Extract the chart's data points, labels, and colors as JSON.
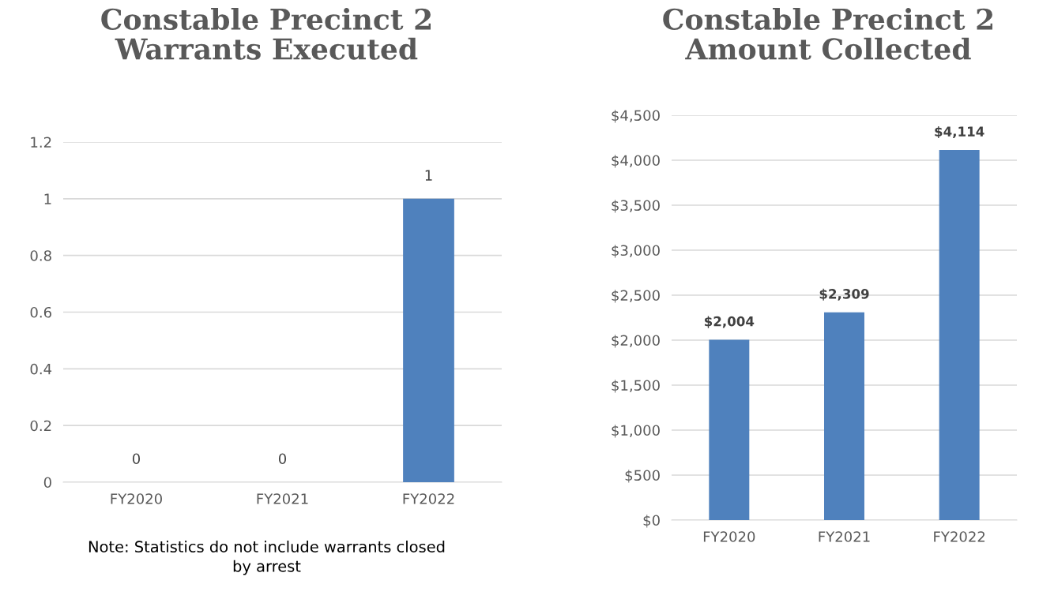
{
  "chart_data": [
    {
      "type": "bar",
      "title": "Constable Precinct 2\nWarrants Executed",
      "categories": [
        "FY2020",
        "FY2021",
        "FY2022"
      ],
      "values": [
        0,
        0,
        1
      ],
      "color": "#4f81bd",
      "ylim": [
        0,
        1.2
      ],
      "yticks": [
        0,
        0.2,
        0.4,
        0.6,
        0.8,
        1,
        1.2
      ],
      "grid": "y",
      "data_labels": true,
      "annotations": [
        "Note: Statistics do not include warrants closed\nby arrest"
      ]
    },
    {
      "type": "bar",
      "title": "Constable Precinct 2\nAmount Collected",
      "categories": [
        "FY2020",
        "FY2021",
        "FY2022"
      ],
      "values": [
        2004,
        2309,
        4114
      ],
      "color": "#4f81bd",
      "ylim": [
        0,
        4500
      ],
      "yticks": [
        {
          "value": 0,
          "label": "$0"
        },
        {
          "value": 500,
          "label": "$500"
        },
        {
          "value": 1000,
          "label": "$1,000"
        },
        {
          "value": 1500,
          "label": "$1,500"
        },
        {
          "value": 2000,
          "label": "$2,000"
        },
        {
          "value": 2500,
          "label": "$2,500"
        },
        {
          "value": 3000,
          "label": "$3,000"
        },
        {
          "value": 3500,
          "label": "$3,500"
        },
        {
          "value": 4000,
          "label": "$4,000"
        },
        {
          "value": 4500,
          "label": "$4,500"
        }
      ],
      "grid": "y",
      "value_labels": [
        "$2,004",
        "$2,309",
        "$4,114"
      ]
    }
  ]
}
